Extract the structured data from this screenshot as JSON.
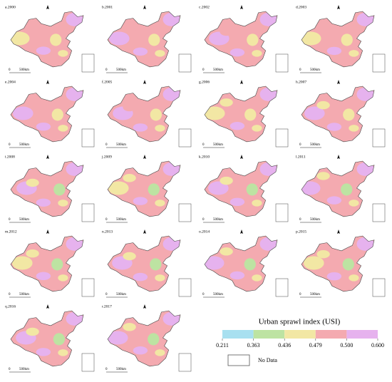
{
  "panels": [
    "a.2000",
    "b.2001",
    "c.2002",
    "d.2003",
    "e.2004",
    "f.2005",
    "g.2006",
    "h.2007",
    "i.2008",
    "j.2009",
    "k.2010",
    "l.2011",
    "m.2012",
    "n.2013",
    "o.2014",
    "p.2015",
    "q.2016",
    "r.2017"
  ],
  "scale_bar": {
    "labels": [
      "0",
      "500km"
    ]
  },
  "legend": {
    "title": "Urban sprawl index (USI)",
    "ticks": [
      {
        "value": 0.211,
        "label": "0.211"
      },
      {
        "value": 0.363,
        "label": "0.363"
      },
      {
        "value": 0.436,
        "label": "0.436"
      },
      {
        "value": 0.479,
        "label": "0.479"
      },
      {
        "value": 0.5,
        "label": "0.500"
      },
      {
        "value": 0.6,
        "label": "0.600"
      }
    ],
    "colors": [
      "#a8e0f0",
      "#bde3a2",
      "#f2e7a4",
      "#f4aab0",
      "#e6b2ee"
    ],
    "no_data": "No Data"
  }
}
